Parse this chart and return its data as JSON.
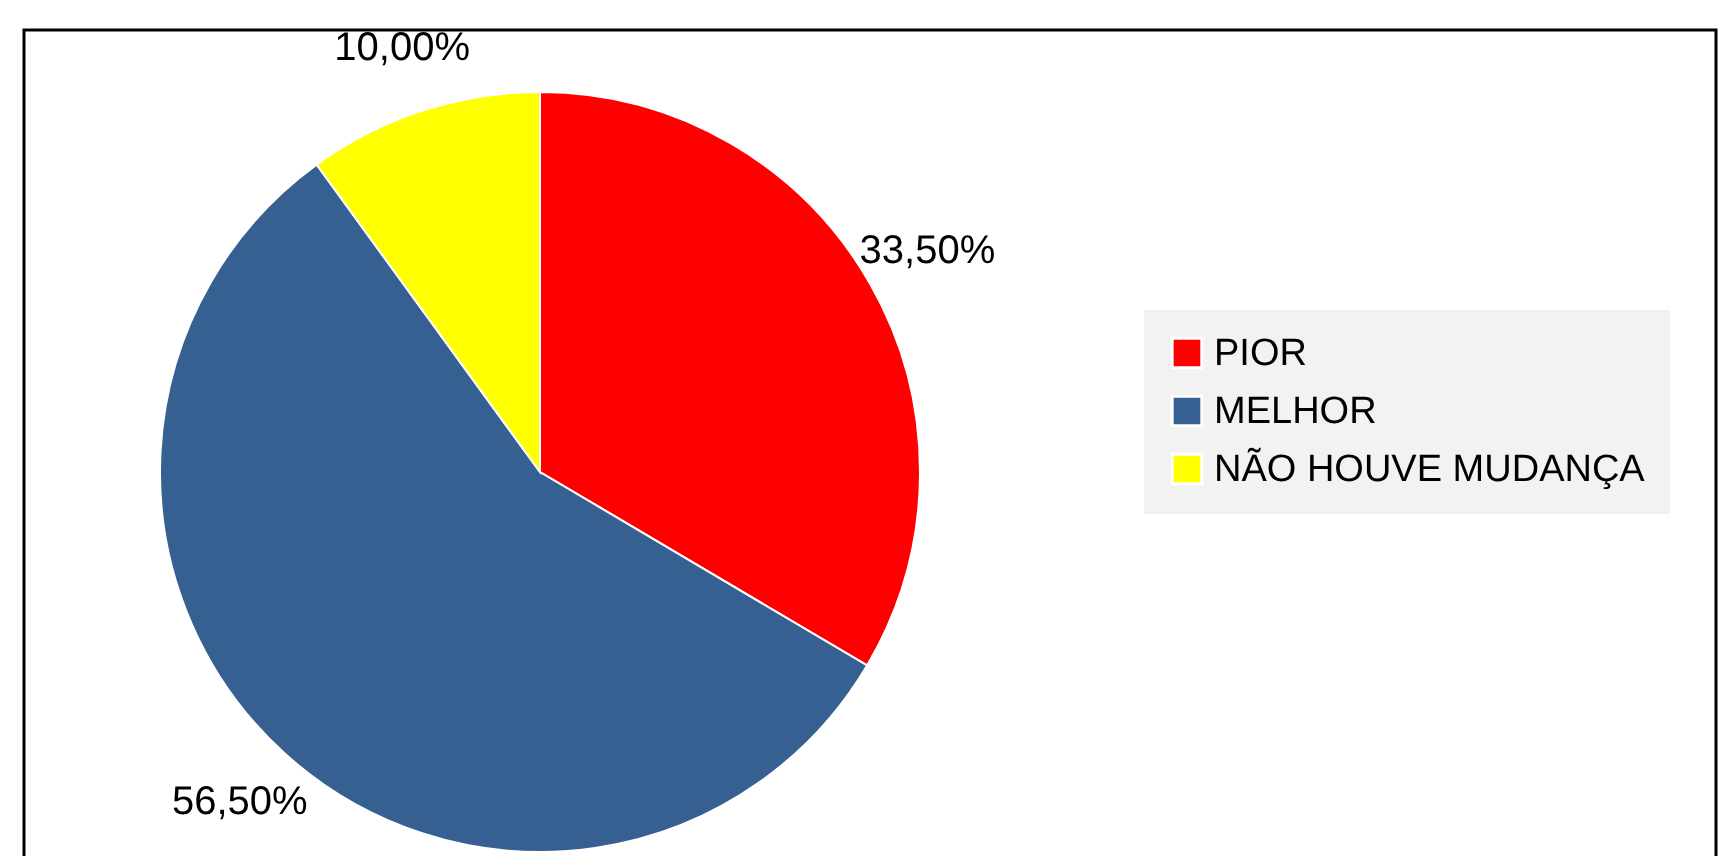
{
  "chart_data": {
    "type": "pie",
    "categories": [
      "PIOR",
      "MELHOR",
      "NÃO HOUVE MUDANÇA"
    ],
    "values": [
      33.5,
      56.5,
      10
    ],
    "colors": [
      "#ff0000",
      "#366092",
      "#ffff00"
    ],
    "value_labels": [
      "33,50%",
      "56,50%",
      "10,00%"
    ],
    "legend": "right"
  }
}
